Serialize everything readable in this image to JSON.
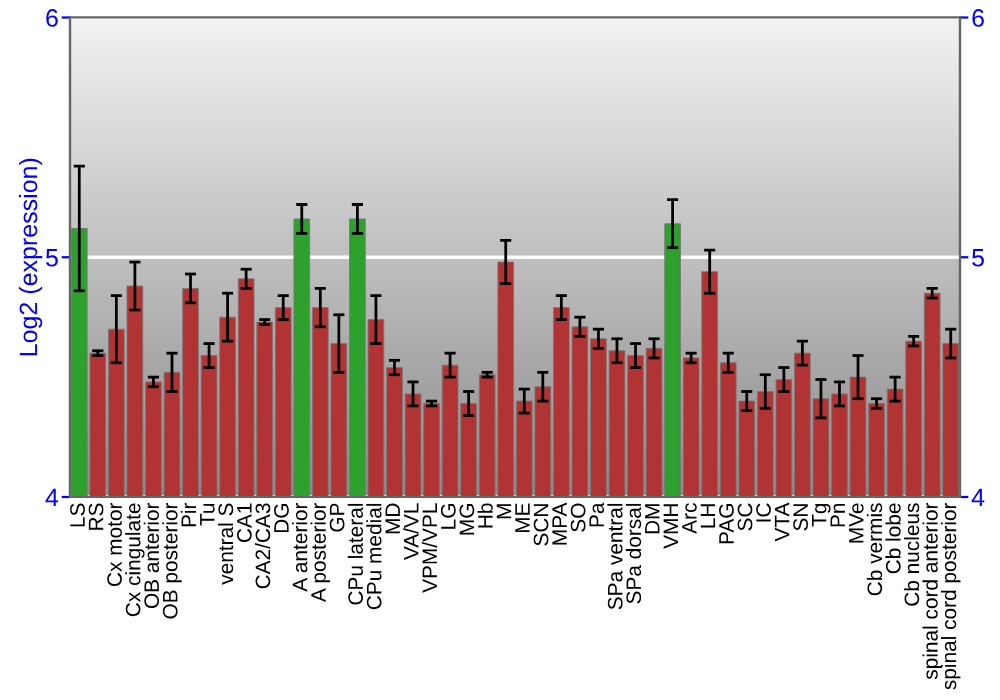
{
  "chart_data": {
    "type": "bar",
    "ylabel": "Log2 (expression)",
    "categories": [
      "LS",
      "RS",
      "Cx motor",
      "Cx cingulate",
      "OB anterior",
      "OB posterior",
      "Pir",
      "Tu",
      "ventral S",
      "CA1",
      "CA2/CA3",
      "DG",
      "A anterior",
      "A posterior",
      "GP",
      "CPu lateral",
      "CPu medial",
      "MD",
      "VA/VL",
      "VPM/VPL",
      "LG",
      "MG",
      "Hb",
      "M",
      "ME",
      "SCN",
      "MPA",
      "SO",
      "Pa",
      "SPa ventral",
      "SPa dorsal",
      "DM",
      "VMH",
      "Arc",
      "LH",
      "PAG",
      "SC",
      "IC",
      "VTA",
      "SN",
      "Tg",
      "Pn",
      "MVe",
      "Cb vermis",
      "Cb lobe",
      "Cb nucleus",
      "spinal cord anterior",
      "spinal cord posterior"
    ],
    "values": [
      5.12,
      4.6,
      4.7,
      4.88,
      4.48,
      4.52,
      4.87,
      4.59,
      4.75,
      4.91,
      4.73,
      4.79,
      5.16,
      4.79,
      4.64,
      5.16,
      4.74,
      4.54,
      4.43,
      4.39,
      4.55,
      4.39,
      4.51,
      4.98,
      4.4,
      4.46,
      4.79,
      4.71,
      4.66,
      4.61,
      4.59,
      4.62,
      5.14,
      4.58,
      4.94,
      4.56,
      4.4,
      4.44,
      4.49,
      4.6,
      4.41,
      4.43,
      4.5,
      4.39,
      4.45,
      4.65,
      4.85,
      4.64
    ],
    "errors": [
      0.26,
      0.01,
      0.14,
      0.1,
      0.02,
      0.08,
      0.06,
      0.05,
      0.1,
      0.04,
      0.01,
      0.05,
      0.06,
      0.08,
      0.12,
      0.06,
      0.1,
      0.03,
      0.05,
      0.01,
      0.05,
      0.05,
      0.01,
      0.09,
      0.05,
      0.06,
      0.05,
      0.04,
      0.04,
      0.05,
      0.05,
      0.04,
      0.1,
      0.02,
      0.09,
      0.04,
      0.04,
      0.07,
      0.05,
      0.05,
      0.08,
      0.05,
      0.09,
      0.02,
      0.05,
      0.02,
      0.02,
      0.06
    ],
    "colors": [
      "#2ea02e",
      "#b23333",
      "#b23333",
      "#b23333",
      "#b23333",
      "#b23333",
      "#b23333",
      "#b23333",
      "#b23333",
      "#b23333",
      "#b23333",
      "#b23333",
      "#2ea02e",
      "#b23333",
      "#b23333",
      "#2ea02e",
      "#b23333",
      "#b23333",
      "#b23333",
      "#b23333",
      "#b23333",
      "#b23333",
      "#b23333",
      "#b23333",
      "#b23333",
      "#b23333",
      "#b23333",
      "#b23333",
      "#b23333",
      "#b23333",
      "#b23333",
      "#b23333",
      "#2ea02e",
      "#b23333",
      "#b23333",
      "#b23333",
      "#b23333",
      "#b23333",
      "#b23333",
      "#b23333",
      "#b23333",
      "#b23333",
      "#b23333",
      "#b23333",
      "#b23333",
      "#b23333",
      "#b23333",
      "#b23333"
    ],
    "ylim": [
      4,
      6
    ],
    "yticks": [
      4,
      5,
      6
    ],
    "y2lim": [
      4,
      6
    ],
    "y2ticks": [
      4,
      5,
      6
    ],
    "grid": "y"
  }
}
